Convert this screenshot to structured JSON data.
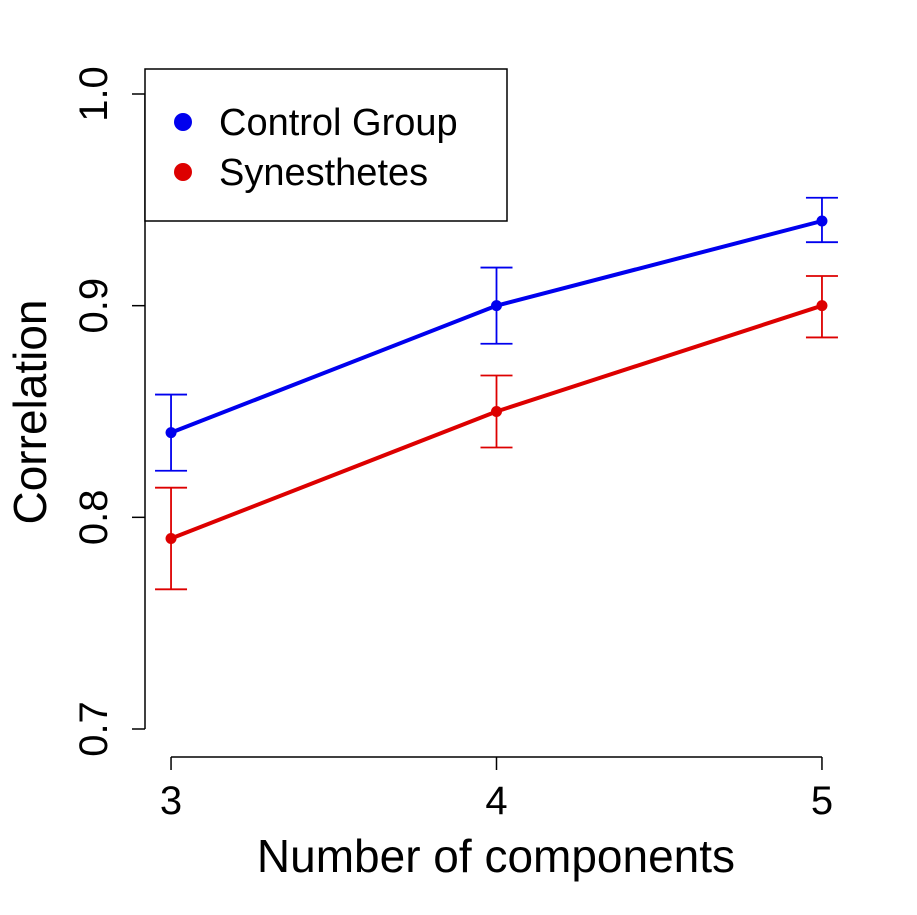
{
  "chart_data": {
    "type": "line",
    "title": "",
    "xlabel": "Number of components",
    "ylabel": "Correlation",
    "x": [
      3,
      4,
      5
    ],
    "x_tick_labels": [
      "3",
      "4",
      "5"
    ],
    "y_ticks": [
      0.7,
      0.8,
      0.9,
      1.0
    ],
    "y_tick_labels": [
      "0.7",
      "0.8",
      "0.9",
      "1.0"
    ],
    "xlim": [
      2.92,
      5.08
    ],
    "ylim": [
      0.7,
      1.0
    ],
    "grid": false,
    "legend": {
      "position": "top-left",
      "boxed": true
    },
    "series": [
      {
        "name": "Control Group",
        "color": "#0000ee",
        "values": [
          0.84,
          0.9,
          0.94
        ],
        "err_low": [
          0.822,
          0.882,
          0.93
        ],
        "err_high": [
          0.858,
          0.918,
          0.951
        ]
      },
      {
        "name": "Synesthetes",
        "color": "#dd0000",
        "values": [
          0.79,
          0.85,
          0.9
        ],
        "err_low": [
          0.766,
          0.833,
          0.885
        ],
        "err_high": [
          0.814,
          0.867,
          0.914
        ]
      }
    ]
  }
}
